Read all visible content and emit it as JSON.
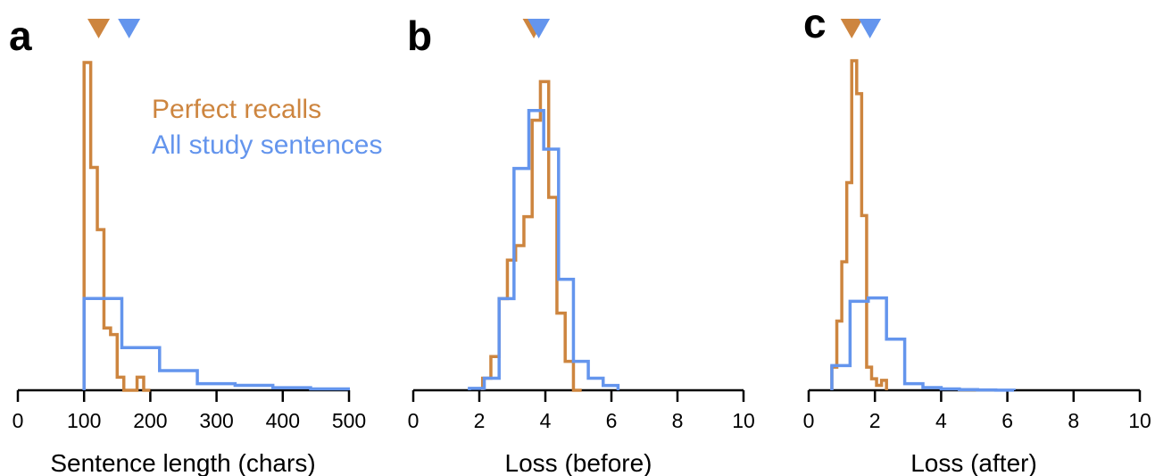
{
  "colors": {
    "perfect": "#CD853F",
    "all": "#6495ED"
  },
  "legend": [
    {
      "label": "Perfect recalls",
      "color": "#CD853F"
    },
    {
      "label": "All study sentences",
      "color": "#6495ED"
    }
  ],
  "chart_data": [
    {
      "type": "histogram",
      "panel": "a",
      "xlabel": "Sentence length (chars)",
      "xlim": [
        0,
        500
      ],
      "xticks": [
        0,
        100,
        200,
        300,
        400,
        500
      ],
      "y_axis_shown": false,
      "markers": {
        "perfect": 122,
        "all": 168
      },
      "series": [
        {
          "name": "Perfect recalls",
          "edges": [
            100,
            110,
            120,
            130,
            140,
            150,
            160,
            170,
            180,
            190,
            200
          ],
          "values": [
            1.0,
            0.68,
            0.49,
            0.19,
            0.17,
            0.04,
            0,
            0,
            0.04,
            0
          ]
        },
        {
          "name": "All study sentences",
          "edges": [
            100,
            157,
            214,
            271,
            328,
            385,
            442,
            499
          ],
          "values": [
            0.28,
            0.13,
            0.06,
            0.02,
            0.015,
            0.008,
            0.004
          ]
        }
      ]
    },
    {
      "type": "histogram",
      "panel": "b",
      "xlabel": "Loss (before)",
      "xlim": [
        0,
        10
      ],
      "xticks": [
        0,
        2,
        4,
        6,
        8,
        10
      ],
      "y_axis_shown": false,
      "markers": {
        "perfect": 3.65,
        "all": 3.8
      },
      "series": [
        {
          "name": "Perfect recalls",
          "edges": [
            2.1,
            2.35,
            2.6,
            2.85,
            3.1,
            3.35,
            3.6,
            3.85,
            4.1,
            4.35,
            4.6,
            4.85,
            5.1
          ],
          "values": [
            0.025,
            0.07,
            0.19,
            0.27,
            0.3,
            0.36,
            0.56,
            0.64,
            0.4,
            0.16,
            0.06,
            0
          ]
        },
        {
          "name": "All study sentences",
          "edges": [
            1.7,
            2.15,
            2.6,
            3.05,
            3.5,
            3.95,
            4.4,
            4.85,
            5.3,
            5.75,
            6.2
          ],
          "values": [
            0.004,
            0.025,
            0.19,
            0.46,
            0.58,
            0.5,
            0.23,
            0.06,
            0.025,
            0.01
          ]
        }
      ]
    },
    {
      "type": "histogram",
      "panel": "c",
      "xlabel": "Loss (after)",
      "xlim": [
        0,
        10
      ],
      "xticks": [
        0,
        2,
        4,
        6,
        8,
        10
      ],
      "y_axis_shown": false,
      "markers": {
        "perfect": 1.3,
        "all": 1.85
      },
      "series": [
        {
          "name": "Perfect recalls",
          "edges": [
            0.7,
            0.85,
            1.0,
            1.15,
            1.3,
            1.45,
            1.6,
            1.75,
            1.9,
            2.05,
            2.2,
            2.35
          ],
          "values": [
            0.07,
            0.21,
            0.39,
            0.63,
            1.0,
            0.9,
            0.53,
            0.07,
            0.035,
            0.015,
            0.03
          ]
        },
        {
          "name": "All study sentences",
          "edges": [
            0.7,
            1.25,
            1.8,
            2.35,
            2.9,
            3.45,
            4.0,
            4.55,
            5.1,
            5.65,
            6.2
          ],
          "values": [
            0.075,
            0.27,
            0.28,
            0.155,
            0.02,
            0.008,
            0.004,
            0.002,
            0.001,
            0.0005
          ]
        }
      ]
    }
  ]
}
